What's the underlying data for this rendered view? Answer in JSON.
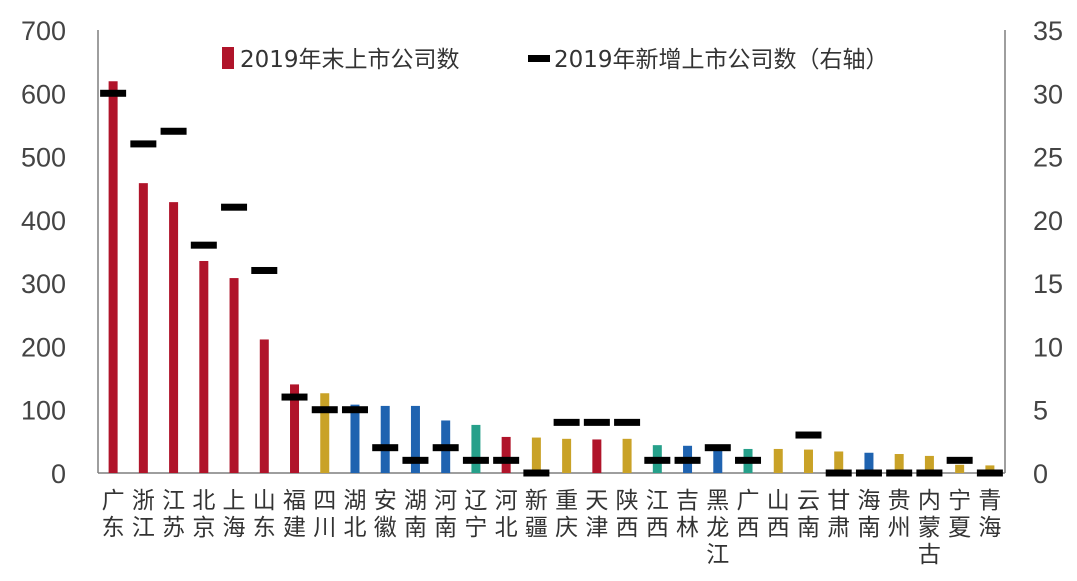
{
  "chart_data": {
    "type": "bar",
    "categories": [
      "广东",
      "浙江",
      "江苏",
      "北京",
      "上海",
      "山东",
      "福建",
      "四川",
      "湖北",
      "安徽",
      "湖南",
      "河南",
      "辽宁",
      "河北",
      "新疆",
      "重庆",
      "天津",
      "陕西",
      "江西",
      "吉林",
      "黑龙江",
      "广西",
      "山西",
      "云南",
      "甘肃",
      "海南",
      "贵州",
      "内蒙古",
      "宁夏",
      "青海"
    ],
    "series": [
      {
        "name": "2019年末上市公司数",
        "axis": "left",
        "mark": "bar",
        "values": [
          619,
          458,
          428,
          335,
          308,
          211,
          140,
          126,
          108,
          106,
          106,
          83,
          76,
          57,
          56,
          54,
          53,
          54,
          44,
          43,
          39,
          38,
          38,
          37,
          34,
          32,
          30,
          27,
          13,
          12
        ],
        "colors": [
          "#b0142a",
          "#b0142a",
          "#b0142a",
          "#b0142a",
          "#b0142a",
          "#b0142a",
          "#b0142a",
          "#c9a227",
          "#1f63b0",
          "#1f63b0",
          "#1f63b0",
          "#1f63b0",
          "#26a08a",
          "#b0142a",
          "#c9a227",
          "#c9a227",
          "#b0142a",
          "#c9a227",
          "#26a08a",
          "#1f63b0",
          "#1f63b0",
          "#26a08a",
          "#c9a227",
          "#c9a227",
          "#c9a227",
          "#1f63b0",
          "#c9a227",
          "#c9a227",
          "#c9a227",
          "#c9a227"
        ]
      },
      {
        "name": "2019年新增上市公司数（右轴）",
        "axis": "right",
        "mark": "dash",
        "color": "#000000",
        "values": [
          30,
          26,
          27,
          18,
          21,
          16,
          6,
          5,
          5,
          2,
          1,
          2,
          1,
          1,
          0,
          4,
          4,
          4,
          1,
          1,
          2,
          1,
          null,
          3,
          0,
          0,
          0,
          0,
          1,
          0
        ]
      }
    ],
    "ylim_left": [
      0,
      700
    ],
    "yticks_left": [
      0,
      100,
      200,
      300,
      400,
      500,
      600,
      700
    ],
    "ylim_right": [
      0,
      35
    ],
    "yticks_right": [
      0,
      5,
      10,
      15,
      20,
      25,
      30,
      35
    ],
    "legend_position": "top",
    "grid": false
  }
}
